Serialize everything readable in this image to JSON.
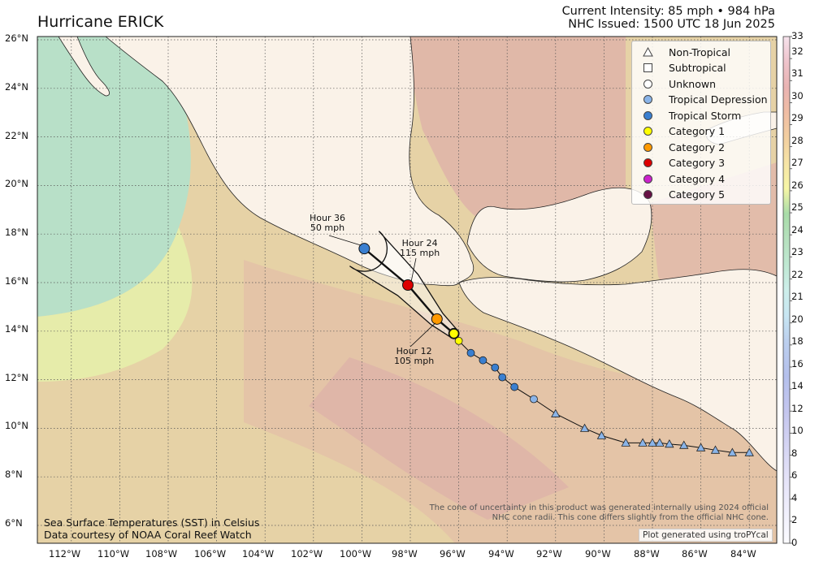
{
  "header": {
    "title": "Hurricane ERICK",
    "intensity": "Current Intensity: 85 mph • 984 hPa",
    "issued": "NHC Issued: 1500 UTC 18 Jun 2025"
  },
  "legend": [
    {
      "label": "Non-Tropical",
      "symbol": "triangle",
      "color": "#ffffff"
    },
    {
      "label": "Subtropical",
      "symbol": "square",
      "color": "#ffffff"
    },
    {
      "label": "Unknown",
      "symbol": "circle",
      "color": "#ffffff"
    },
    {
      "label": "Tropical Depression",
      "symbol": "circle",
      "color": "#8ab4e8"
    },
    {
      "label": "Tropical Storm",
      "symbol": "circle",
      "color": "#3a7fd0"
    },
    {
      "label": "Category 1",
      "symbol": "circle",
      "color": "#ffff00"
    },
    {
      "label": "Category 2",
      "symbol": "circle",
      "color": "#ff9900"
    },
    {
      "label": "Category 3",
      "symbol": "circle",
      "color": "#dd0000"
    },
    {
      "label": "Category 4",
      "symbol": "circle",
      "color": "#cc22cc"
    },
    {
      "label": "Category 5",
      "symbol": "circle",
      "color": "#661144"
    }
  ],
  "forecast_labels": [
    {
      "id": "h36",
      "line1": "Hour 36",
      "line2": "50 mph"
    },
    {
      "id": "h24",
      "line1": "Hour 24",
      "line2": "115 mph"
    },
    {
      "id": "h12",
      "line1": "Hour 12",
      "line2": "105 mph"
    }
  ],
  "colorbar": {
    "ticks": [
      "0",
      "2",
      "4",
      "6",
      "8",
      "10",
      "12",
      "14",
      "16",
      "18",
      "20",
      "21",
      "22",
      "23",
      "24",
      "25",
      "26",
      "27",
      "28",
      "29",
      "30",
      "31",
      "32",
      "33"
    ]
  },
  "axes": {
    "lat_labels": [
      "26°N",
      "24°N",
      "22°N",
      "20°N",
      "18°N",
      "16°N",
      "14°N",
      "12°N",
      "10°N",
      "8°N",
      "6°N"
    ],
    "lon_labels": [
      "112°W",
      "110°W",
      "108°W",
      "106°W",
      "104°W",
      "102°W",
      "100°W",
      "98°W",
      "96°W",
      "94°W",
      "92°W",
      "90°W",
      "88°W",
      "86°W",
      "84°W"
    ]
  },
  "notes": {
    "cone_line1": "The cone of uncertainty in this product was generated internally using 2024 official",
    "cone_line2": "NHC cone radii. This cone differs slightly from the official NHC cone.",
    "sst_line1": "Sea Surface Temperatures (SST) in Celsius",
    "sst_line2": "Data courtesy of NOAA Coral Reef Watch",
    "credit": "Plot generated using troPYcal"
  },
  "track": {
    "past": [
      {
        "lon": -84.0,
        "lat": 9.0,
        "type": "non-tropical"
      },
      {
        "lon": -84.7,
        "lat": 9.0,
        "type": "non-tropical"
      },
      {
        "lon": -85.4,
        "lat": 9.1,
        "type": "non-tropical"
      },
      {
        "lon": -86.0,
        "lat": 9.2,
        "type": "non-tropical"
      },
      {
        "lon": -86.7,
        "lat": 9.3,
        "type": "non-tropical"
      },
      {
        "lon": -87.3,
        "lat": 9.35,
        "type": "non-tropical"
      },
      {
        "lon": -87.7,
        "lat": 9.4,
        "type": "non-tropical"
      },
      {
        "lon": -88.0,
        "lat": 9.4,
        "type": "non-tropical"
      },
      {
        "lon": -88.4,
        "lat": 9.4,
        "type": "non-tropical"
      },
      {
        "lon": -89.1,
        "lat": 9.4,
        "type": "non-tropical"
      },
      {
        "lon": -90.1,
        "lat": 9.7,
        "type": "non-tropical"
      },
      {
        "lon": -90.8,
        "lat": 10.0,
        "type": "non-tropical"
      },
      {
        "lon": -92.0,
        "lat": 10.6,
        "type": "non-tropical"
      },
      {
        "lon": -92.9,
        "lat": 11.2,
        "type": "tropical-depression"
      },
      {
        "lon": -93.7,
        "lat": 11.7,
        "type": "tropical-storm"
      },
      {
        "lon": -94.2,
        "lat": 12.1,
        "type": "tropical-storm"
      },
      {
        "lon": -94.5,
        "lat": 12.5,
        "type": "tropical-storm"
      },
      {
        "lon": -95.0,
        "lat": 12.8,
        "type": "tropical-storm"
      },
      {
        "lon": -95.5,
        "lat": 13.1,
        "type": "tropical-storm"
      },
      {
        "lon": -96.0,
        "lat": 13.6,
        "type": "category-1"
      }
    ],
    "forecast": [
      {
        "lon": -96.2,
        "lat": 13.9,
        "type": "category-1"
      },
      {
        "lon": -96.9,
        "lat": 14.5,
        "type": "category-2"
      },
      {
        "lon": -98.1,
        "lat": 15.9,
        "type": "category-3"
      },
      {
        "lon": -99.9,
        "lat": 17.4,
        "type": "tropical-storm"
      }
    ]
  }
}
